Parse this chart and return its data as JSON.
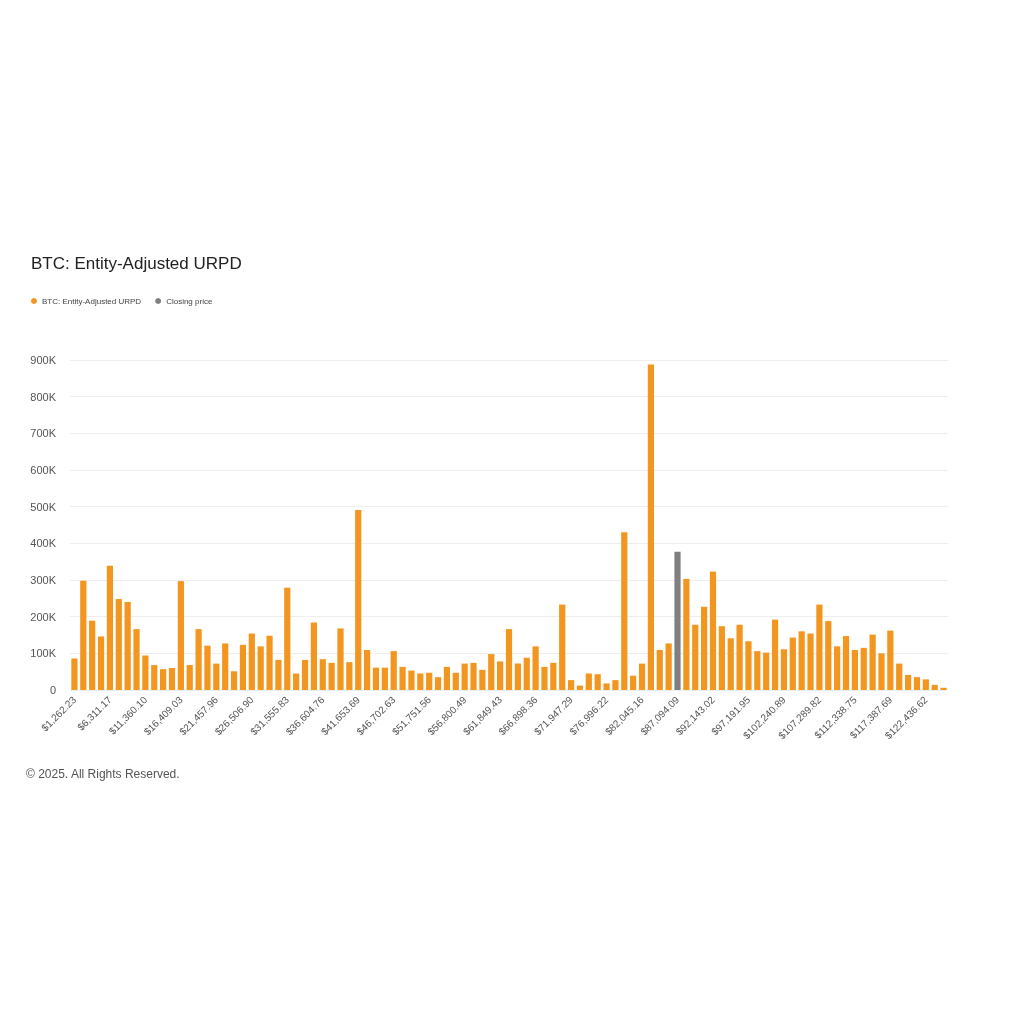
{
  "chart_data": {
    "type": "bar",
    "title": "BTC: Entity-Adjusted URPD",
    "categories": [
      "$1,262.23",
      null,
      null,
      null,
      "$6,311.17",
      null,
      null,
      null,
      "$11,360.10",
      null,
      null,
      null,
      "$16,409.03",
      null,
      null,
      null,
      "$21,457.96",
      null,
      null,
      null,
      "$26,506.90",
      null,
      null,
      null,
      "$31,555.83",
      null,
      null,
      null,
      "$36,604.76",
      null,
      null,
      null,
      "$41,653.69",
      null,
      null,
      null,
      "$46,702.63",
      null,
      null,
      null,
      "$51,751.56",
      null,
      null,
      null,
      "$56,800.49",
      null,
      null,
      null,
      "$61,849.43",
      null,
      null,
      null,
      "$66,898.36",
      null,
      null,
      null,
      "$71,947.29",
      null,
      null,
      null,
      "$76,996.22",
      null,
      null,
      null,
      "$82,045.16",
      null,
      null,
      null,
      "$87,094.09",
      null,
      null,
      null,
      "$92,143.02",
      null,
      null,
      null,
      "$97,191.95",
      null,
      null,
      null,
      "$102,240.89",
      null,
      null,
      null,
      "$107,289.82",
      null,
      null,
      null,
      "$112,338.75",
      null,
      null,
      null,
      "$117,387.69",
      null,
      null,
      null,
      "$122,436.62",
      null,
      null
    ],
    "series": [
      {
        "name": "BTC: Entity-Adjusted URPD",
        "color": "#f2961f",
        "values": [
          86000,
          298000,
          189000,
          146000,
          339000,
          248000,
          240000,
          166000,
          94000,
          68000,
          57000,
          60000,
          297000,
          68000,
          166000,
          121000,
          72000,
          127000,
          51000,
          123000,
          154000,
          119000,
          148000,
          82000,
          279000,
          45000,
          82000,
          184000,
          84000,
          74000,
          168000,
          76000,
          491000,
          109000,
          61000,
          61000,
          106000,
          63000,
          53000,
          45000,
          47000,
          35000,
          63000,
          47000,
          72000,
          74000,
          55000,
          98000,
          78000,
          166000,
          72000,
          88000,
          119000,
          63000,
          74000,
          233000,
          27000,
          12000,
          45000,
          43000,
          18000,
          27000,
          430000,
          39000,
          72000,
          888000,
          109000,
          127000,
          null,
          303000,
          178000,
          227000,
          323000,
          174000,
          141000,
          178000,
          133000,
          106000,
          102000,
          192000,
          111000,
          143000,
          160000,
          154000,
          233000,
          188000,
          119000,
          147000,
          109000,
          115000,
          151000,
          100000,
          162000,
          72000,
          41000,
          35000,
          29000,
          14000,
          6000
        ]
      },
      {
        "name": "Closing price",
        "color": "#7f7f7f",
        "values": [
          null,
          null,
          null,
          null,
          null,
          null,
          null,
          null,
          null,
          null,
          null,
          null,
          null,
          null,
          null,
          null,
          null,
          null,
          null,
          null,
          null,
          null,
          null,
          null,
          null,
          null,
          null,
          null,
          null,
          null,
          null,
          null,
          null,
          null,
          null,
          null,
          null,
          null,
          null,
          null,
          null,
          null,
          null,
          null,
          null,
          null,
          null,
          null,
          null,
          null,
          null,
          null,
          null,
          null,
          null,
          null,
          null,
          null,
          null,
          null,
          null,
          null,
          null,
          null,
          null,
          null,
          null,
          null,
          377000,
          null,
          null,
          null,
          null,
          null,
          null,
          null,
          null,
          null,
          null,
          null,
          null,
          null,
          null,
          null,
          null,
          null,
          null,
          null,
          null,
          null,
          null,
          null,
          null,
          null,
          null,
          null,
          null,
          null,
          null
        ]
      }
    ],
    "ylim": [
      0,
      900000
    ],
    "yticks": [
      0,
      {
        "value": 100000,
        "label": "100K"
      },
      {
        "value": 200000,
        "label": "200K"
      },
      {
        "value": 300000,
        "label": "300K"
      },
      {
        "value": 400000,
        "label": "400K"
      },
      {
        "value": 500000,
        "label": "500K"
      },
      {
        "value": 600000,
        "label": "600K"
      },
      {
        "value": 700000,
        "label": "700K"
      },
      {
        "value": 800000,
        "label": "800K"
      },
      {
        "value": 900000,
        "label": "900K"
      }
    ],
    "grid": "y",
    "legend": "top left",
    "annotations": [
      "© 2025. All Rights Reserved."
    ]
  }
}
